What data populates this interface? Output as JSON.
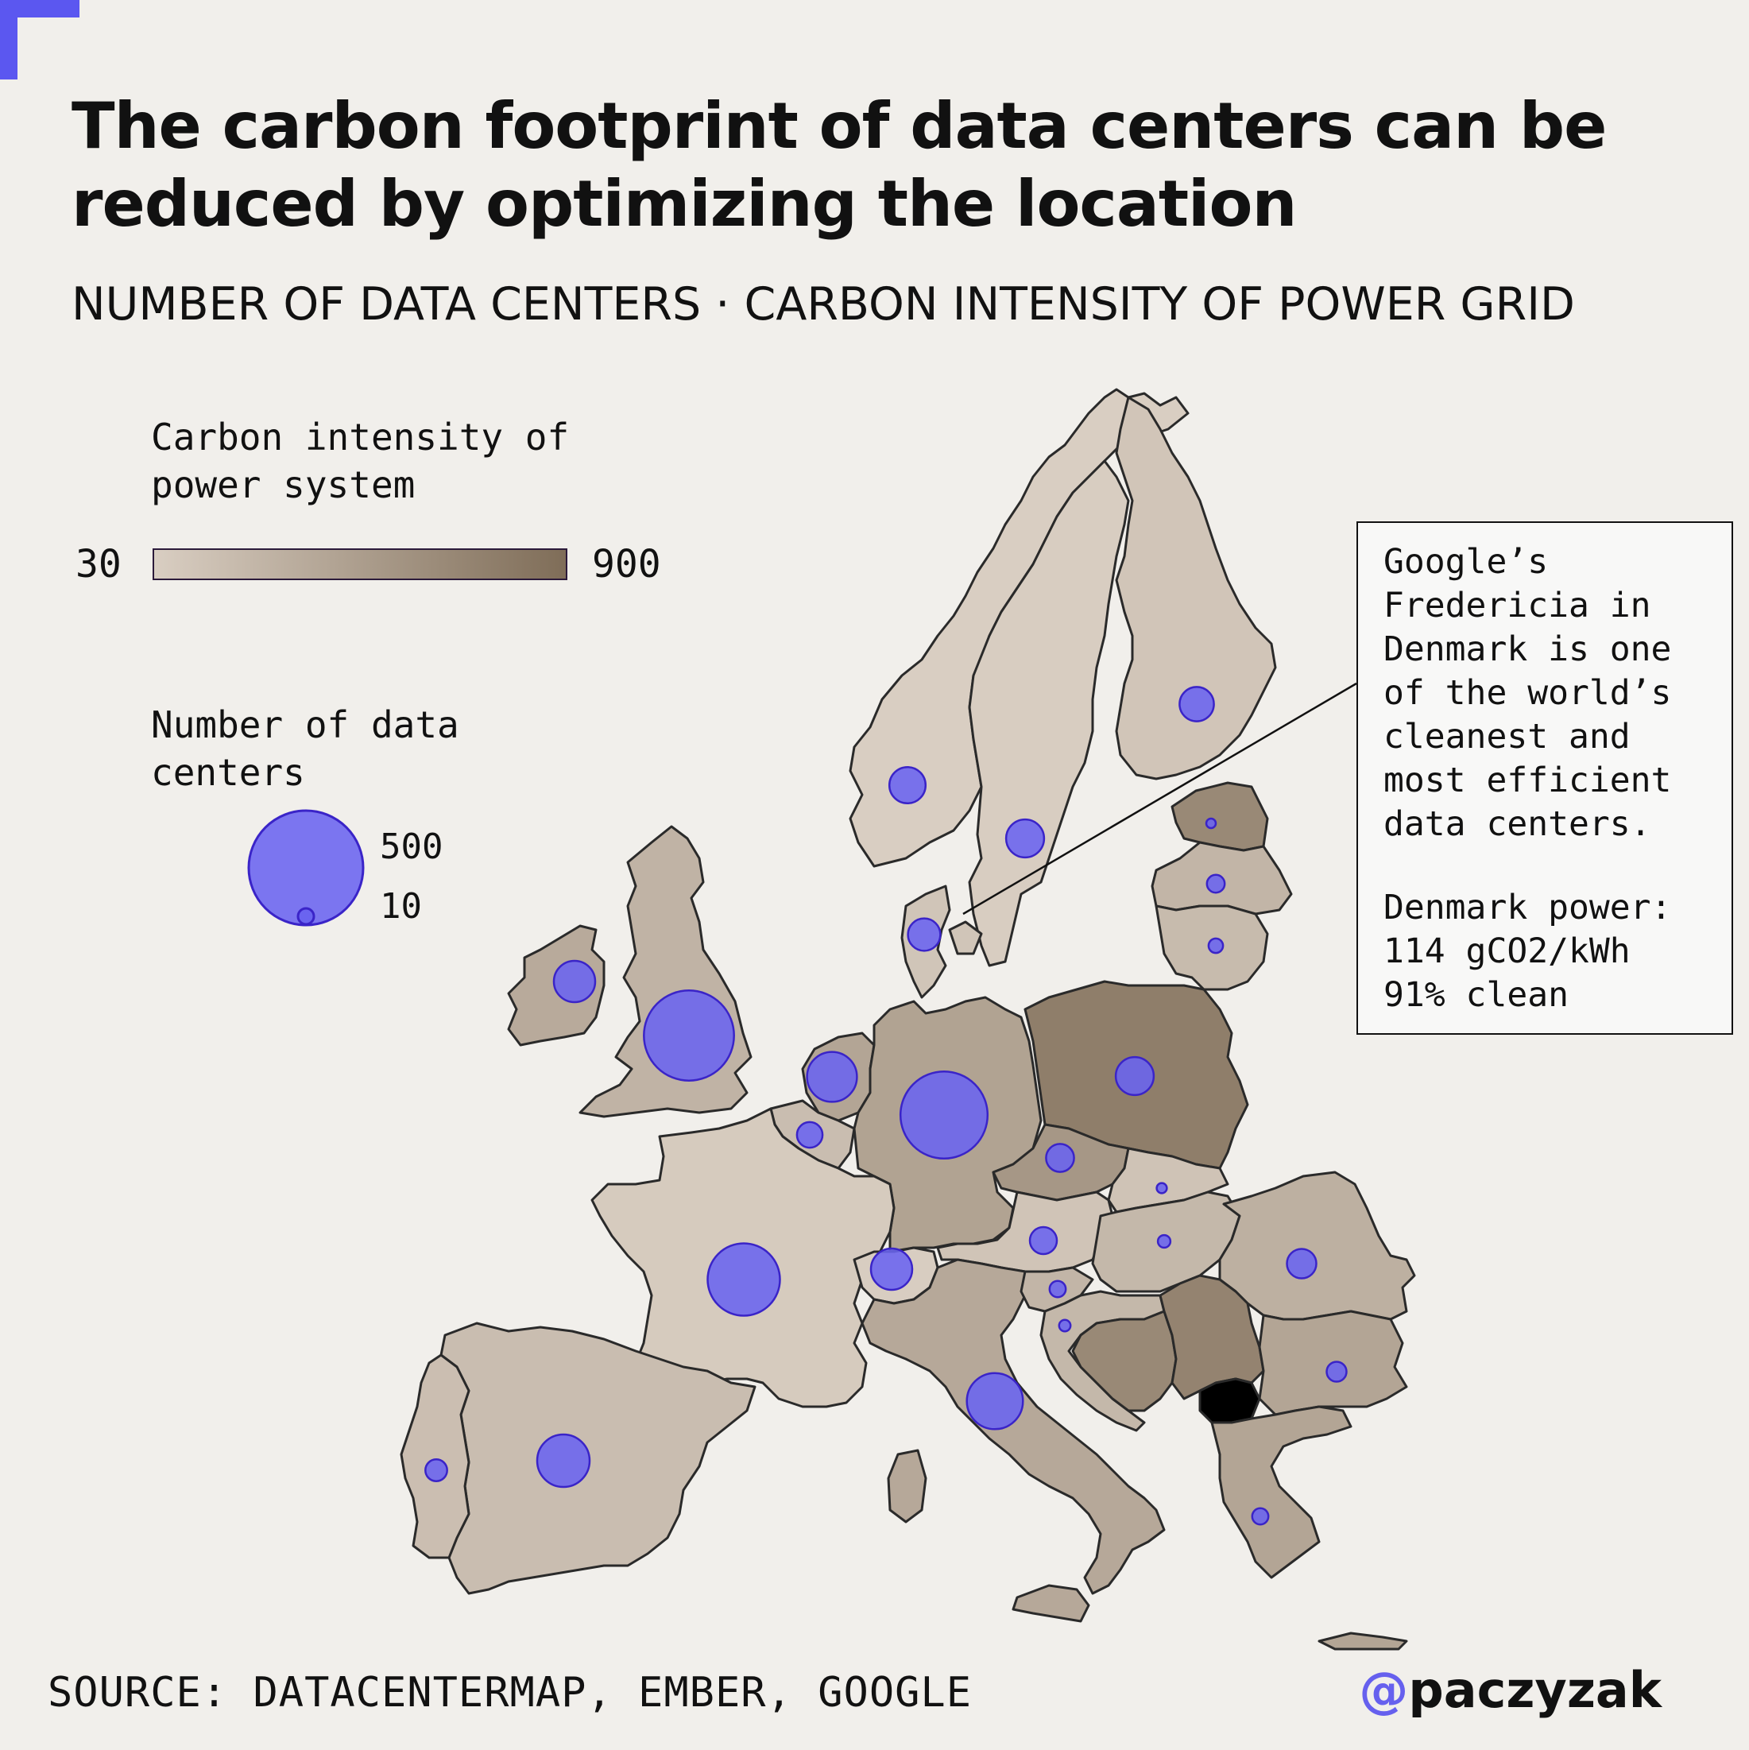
{
  "title": "The carbon footprint of data centers can be reduced by optimizing the location",
  "subtitle": "NUMBER OF DATA CENTERS · CARBON INTENSITY OF POWER GRID",
  "legend": {
    "carbon_title": "Carbon intensity of\npower system",
    "carbon_min": "30",
    "carbon_max": "900",
    "count_title": "Number of data\ncenters",
    "count_large": "500",
    "count_small": "10"
  },
  "callout": {
    "text": "Google’s\nFredericia in\nDenmark is one\nof the world’s\ncleanest and\nmost efficient\ndata centers.",
    "power_text": "Denmark power:\n114 gCO2/kWh\n91% clean"
  },
  "source": "SOURCE: DATACENTERMAP, EMBER, GOOGLE",
  "handle_at": "@",
  "handle_name": "paczyzak",
  "colors": {
    "background": "#f1efeb",
    "scale_low": "#d9cec2",
    "scale_high": "#7f6d58",
    "bubble_fill": "#6a64f0",
    "bubble_stroke": "#3a24c8",
    "accent": "#5b57f0"
  },
  "map_data": {
    "carbon_scale": {
      "min": 30,
      "max": 900
    },
    "size_scale": {
      "count": 500
    },
    "countries": [
      {
        "id": "norway",
        "intensity": 30,
        "data_centers": 50
      },
      {
        "id": "sweden",
        "intensity": 40,
        "data_centers": 55
      },
      {
        "id": "finland",
        "intensity": 110,
        "data_centers": 45
      },
      {
        "id": "denmark",
        "intensity": 114,
        "data_centers": 40
      },
      {
        "id": "estonia",
        "intensity": 650,
        "data_centers": 3
      },
      {
        "id": "latvia",
        "intensity": 250,
        "data_centers": 12
      },
      {
        "id": "lithuania",
        "intensity": 200,
        "data_centers": 8
      },
      {
        "id": "ireland",
        "intensity": 350,
        "data_centers": 65
      },
      {
        "id": "uk",
        "intensity": 270,
        "data_centers": 310
      },
      {
        "id": "netherlands",
        "intensity": 400,
        "data_centers": 95
      },
      {
        "id": "belgium",
        "intensity": 180,
        "data_centers": 25
      },
      {
        "id": "germany",
        "intensity": 420,
        "data_centers": 290
      },
      {
        "id": "poland",
        "intensity": 750,
        "data_centers": 55
      },
      {
        "id": "czechia",
        "intensity": 520,
        "data_centers": 30
      },
      {
        "id": "austria",
        "intensity": 120,
        "data_centers": 28
      },
      {
        "id": "slovakia",
        "intensity": 130,
        "data_centers": 4
      },
      {
        "id": "hungary",
        "intensity": 230,
        "data_centers": 6
      },
      {
        "id": "romania",
        "intensity": 300,
        "data_centers": 33
      },
      {
        "id": "france",
        "intensity": 60,
        "data_centers": 200
      },
      {
        "id": "switzerland",
        "intensity": 40,
        "data_centers": 65
      },
      {
        "id": "italy",
        "intensity": 370,
        "data_centers": 120
      },
      {
        "id": "slovenia",
        "intensity": 250,
        "data_centers": 10
      },
      {
        "id": "croatia",
        "intensity": 230,
        "data_centers": 5
      },
      {
        "id": "bosnia",
        "intensity": 650,
        "data_centers": 0
      },
      {
        "id": "serbia",
        "intensity": 700,
        "data_centers": 0
      },
      {
        "id": "north_macedonia",
        "intensity": 650,
        "data_centers": 0
      },
      {
        "id": "bulgaria",
        "intensity": 400,
        "data_centers": 15
      },
      {
        "id": "greece",
        "intensity": 400,
        "data_centers": 10
      },
      {
        "id": "spain",
        "intensity": 180,
        "data_centers": 105
      },
      {
        "id": "portugal",
        "intensity": 170,
        "data_centers": 18
      }
    ]
  }
}
